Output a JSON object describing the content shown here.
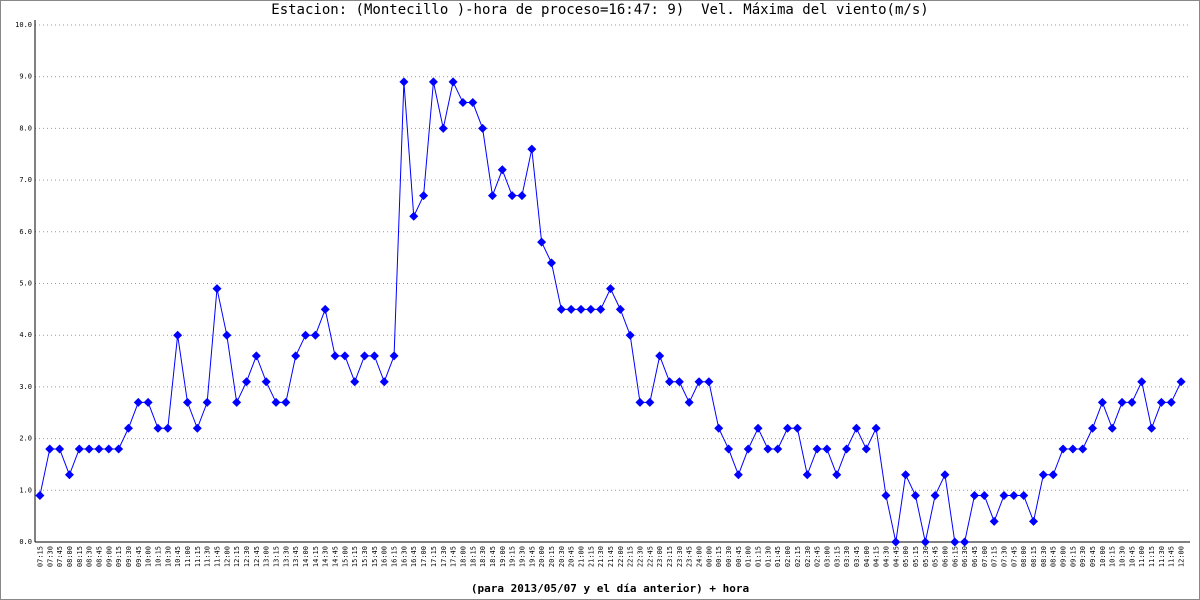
{
  "chart_data": {
    "type": "line",
    "title": "Estacion: (Montecillo )-hora de proceso=16:47: 9)  Vel. Máxima del viento(m/s)",
    "x_label": "(para 2013/05/07 y el día anterior) + hora",
    "categories": [
      "07:15",
      "07:30",
      "07:45",
      "08:00",
      "08:15",
      "08:30",
      "08:45",
      "09:00",
      "09:15",
      "09:30",
      "09:45",
      "10:00",
      "10:15",
      "10:30",
      "10:45",
      "11:00",
      "11:15",
      "11:30",
      "11:45",
      "12:00",
      "12:15",
      "12:30",
      "12:45",
      "13:00",
      "13:15",
      "13:30",
      "13:45",
      "14:00",
      "14:15",
      "14:30",
      "14:45",
      "15:00",
      "15:15",
      "15:30",
      "15:45",
      "16:00",
      "16:15",
      "16:30",
      "16:45",
      "17:00",
      "17:15",
      "17:30",
      "17:45",
      "18:00",
      "18:15",
      "18:30",
      "18:45",
      "19:00",
      "19:15",
      "19:30",
      "19:45",
      "20:00",
      "20:15",
      "20:30",
      "20:45",
      "21:00",
      "21:15",
      "21:30",
      "21:45",
      "22:00",
      "22:15",
      "22:30",
      "22:45",
      "23:00",
      "23:15",
      "23:30",
      "23:45",
      "24:00",
      "00:00",
      "00:15",
      "00:30",
      "00:45",
      "01:00",
      "01:15",
      "01:30",
      "01:45",
      "02:00",
      "02:15",
      "02:30",
      "02:45",
      "03:00",
      "03:15",
      "03:30",
      "03:45",
      "04:00",
      "04:15",
      "04:30",
      "04:45",
      "05:00",
      "05:15",
      "05:30",
      "05:45",
      "06:00",
      "06:15",
      "06:30",
      "06:45",
      "07:00",
      "07:15",
      "07:30",
      "07:45",
      "08:00",
      "08:15",
      "08:30",
      "08:45",
      "09:00",
      "09:15",
      "09:30",
      "09:45",
      "10:00",
      "10:15",
      "10:30",
      "10:45",
      "11:00",
      "11:15",
      "11:30",
      "11:45",
      "12:00"
    ],
    "series": [
      {
        "color": "#0000ff",
        "values": [
          0.9,
          1.8,
          1.8,
          1.3,
          1.8,
          1.8,
          1.8,
          1.8,
          1.8,
          2.2,
          2.7,
          2.7,
          2.2,
          2.2,
          4.0,
          2.7,
          2.2,
          2.7,
          4.9,
          4.0,
          2.7,
          3.1,
          3.6,
          3.1,
          2.7,
          2.7,
          3.6,
          4.0,
          4.0,
          4.5,
          3.6,
          3.6,
          3.1,
          3.6,
          3.6,
          3.1,
          3.6,
          8.9,
          6.3,
          6.7,
          8.9,
          8.0,
          8.9,
          8.5,
          8.5,
          8.0,
          6.7,
          7.2,
          6.7,
          6.7,
          7.6,
          5.8,
          5.4,
          4.5,
          4.5,
          4.5,
          4.5,
          4.5,
          4.9,
          4.5,
          4.0,
          2.7,
          2.7,
          3.6,
          3.1,
          3.1,
          2.7,
          3.1,
          3.1,
          2.2,
          1.8,
          1.3,
          1.8,
          2.2,
          1.8,
          1.8,
          2.2,
          2.2,
          1.3,
          1.8,
          1.8,
          1.3,
          1.8,
          2.2,
          1.8,
          2.2,
          0.9,
          0.0,
          1.3,
          0.9,
          0.0,
          0.9,
          1.3,
          0.0,
          0.0,
          0.9,
          0.9,
          0.4,
          0.9,
          0.9,
          0.9,
          0.4,
          1.3,
          1.3,
          1.8,
          1.8,
          1.8,
          2.2,
          2.7,
          2.2,
          2.7,
          2.7,
          3.1,
          2.2,
          2.7,
          2.7,
          3.1
        ]
      }
    ],
    "ylim": [
      0,
      10
    ],
    "yticks": [
      {
        "value": 0,
        "label": "0.0"
      },
      {
        "value": 1,
        "label": "1.0"
      },
      {
        "value": 2,
        "label": "2.0"
      },
      {
        "value": 3,
        "label": "3.0"
      },
      {
        "value": 4,
        "label": "4.0"
      },
      {
        "value": 5,
        "label": "5.0"
      },
      {
        "value": 6,
        "label": "6.0"
      },
      {
        "value": 7,
        "label": "7.0"
      },
      {
        "value": 8,
        "label": "8.0"
      },
      {
        "value": 9,
        "label": "9.0"
      },
      {
        "value": 10,
        "label": "10.0"
      }
    ],
    "grid": true
  }
}
